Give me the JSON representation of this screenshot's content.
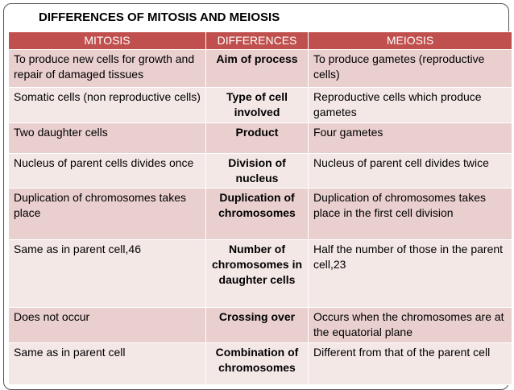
{
  "title": "DIFFERENCES OF MITOSIS AND MEIOSIS",
  "colors": {
    "header_bg": "#c0504d",
    "row_dark": "#e9cfce",
    "row_light": "#f4e8e7"
  },
  "table": {
    "headers": [
      "MITOSIS",
      "DIFFERENCES",
      "MEIOSIS"
    ],
    "rows": [
      {
        "mitosis": "To produce new cells for growth and repair of damaged tissues",
        "difference": "Aim of process",
        "meiosis": "To produce gametes (reproductive cells)"
      },
      {
        "mitosis": "Somatic cells (non reproductive cells)",
        "difference": "Type of cell involved",
        "meiosis": "Reproductive cells which produce gametes"
      },
      {
        "mitosis": "Two daughter cells",
        "difference": "Product",
        "meiosis": "Four gametes"
      },
      {
        "mitosis": "Nucleus of parent cells divides once",
        "difference": "Division of nucleus",
        "meiosis": "Nucleus of parent cell divides twice"
      },
      {
        "mitosis": "Duplication of chromosomes takes place",
        "difference": "Duplication of chromosomes",
        "meiosis": "Duplication of chromosomes takes place in the first cell division"
      },
      {
        "mitosis": "Same as in parent cell,46",
        "difference": "Number of chromosomes in daughter cells",
        "meiosis": "Half the number of those in the parent cell,23"
      },
      {
        "mitosis": "Does not occur",
        "difference": "Crossing over",
        "meiosis": "Occurs when the chromosomes are at the equatorial plane"
      },
      {
        "mitosis": "Same as in parent cell",
        "difference": "Combination of chromosomes",
        "meiosis": "Different from that of the parent cell"
      }
    ]
  }
}
